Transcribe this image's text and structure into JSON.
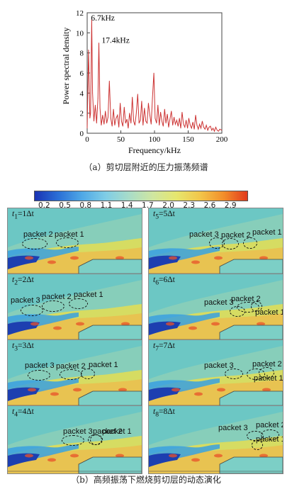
{
  "figure": {
    "caption_a": "（a）剪切层附近的压力振荡频谱",
    "caption_b": "（b）高频振荡下燃烧剪切层的动态演化"
  },
  "chart_data": {
    "type": "line",
    "xlabel": "Frequency/kHz",
    "ylabel": "Power spectral density",
    "xlim": [
      0,
      200
    ],
    "ylim": [
      0,
      12
    ],
    "xticks": [
      "0",
      "50",
      "100",
      "150",
      "200"
    ],
    "yticks": [
      "0",
      "2",
      "4",
      "6",
      "8",
      "10",
      "12"
    ],
    "annotations": [
      {
        "text": "6.7kHz",
        "x": 6.7,
        "y": 11.3
      },
      {
        "text": "17.4kHz",
        "x": 17.4,
        "y": 9.0
      }
    ],
    "line_color": "#cc3333",
    "series": [
      {
        "x": [
          0,
          2,
          4,
          5,
          6.7,
          8,
          10,
          12,
          14,
          16,
          17.4,
          19,
          21,
          23,
          25,
          27,
          29,
          31,
          33,
          35,
          37,
          39,
          41,
          43,
          45,
          47,
          49,
          51,
          53,
          55,
          57,
          59,
          61,
          63,
          65,
          67,
          69,
          71,
          73,
          75,
          77,
          79,
          81,
          83,
          85,
          87,
          89,
          91,
          93,
          95,
          97,
          99,
          101,
          103,
          105,
          107,
          109,
          111,
          113,
          115,
          117,
          119,
          121,
          123,
          125,
          127,
          129,
          131,
          133,
          135,
          137,
          139,
          141,
          143,
          145,
          147,
          149,
          151,
          153,
          155,
          157,
          159,
          161,
          163,
          165,
          167,
          169,
          171,
          173,
          175,
          177,
          179,
          181,
          183,
          185,
          187,
          189,
          191,
          193,
          195,
          197,
          200
        ],
        "y": [
          0.5,
          8.3,
          1.5,
          2.0,
          11.3,
          4.0,
          1.2,
          2.8,
          1.0,
          3.5,
          9.0,
          2.5,
          0.8,
          1.8,
          0.9,
          2.2,
          1.0,
          1.6,
          5.2,
          1.5,
          0.7,
          2.4,
          0.8,
          1.5,
          1.8,
          0.6,
          3.0,
          1.2,
          0.7,
          2.6,
          1.0,
          1.4,
          0.5,
          2.0,
          1.0,
          3.6,
          1.2,
          0.8,
          2.0,
          3.9,
          1.0,
          1.3,
          3.2,
          0.8,
          2.5,
          1.2,
          1.0,
          3.0,
          1.8,
          0.9,
          3.5,
          6.0,
          1.5,
          1.0,
          2.8,
          0.8,
          2.1,
          1.2,
          0.7,
          2.4,
          1.0,
          1.9,
          0.6,
          1.4,
          2.2,
          0.8,
          1.6,
          0.9,
          1.3,
          0.7,
          1.5,
          0.5,
          2.1,
          0.9,
          0.6,
          1.3,
          0.5,
          1.5,
          0.8,
          0.5,
          1.1,
          0.4,
          1.8,
          0.8,
          0.4,
          0.9,
          0.5,
          1.2,
          0.6,
          0.4,
          0.8,
          0.3,
          0.6,
          0.7,
          0.3,
          0.5,
          0.2,
          0.6,
          0.3,
          0.2,
          0.4,
          0.3
        ]
      }
    ]
  },
  "colorbar": {
    "ticks": [
      "0.2",
      "0.5",
      "0.8",
      "1.1",
      "1.4",
      "1.7",
      "2.0",
      "2.3",
      "2.6",
      "2.9"
    ],
    "colors": [
      "#1a33b3",
      "#2a6fd6",
      "#4fa8e6",
      "#7fcde6",
      "#a8dcc8",
      "#cfe6a0",
      "#e6e66e",
      "#f2c64a",
      "#f28e2b",
      "#e23a1c"
    ]
  },
  "panels": [
    {
      "t": "t",
      "sub": "1",
      "eq": "=1Δt",
      "packets": [
        "packet 2",
        "packet 1"
      ]
    },
    {
      "t": "t",
      "sub": "5",
      "eq": "=5Δt",
      "packets": [
        "packet 3",
        "packet 2",
        "packet 1"
      ]
    },
    {
      "t": "t",
      "sub": "2",
      "eq": "=2Δt",
      "packets": [
        "packet 3",
        "packet 2",
        "packet 1"
      ]
    },
    {
      "t": "t",
      "sub": "6",
      "eq": "=6Δt",
      "packets": [
        "packet 3",
        "packet 2",
        "packet 1"
      ]
    },
    {
      "t": "t",
      "sub": "3",
      "eq": "=3Δt",
      "packets": [
        "packet 3",
        "packet 2",
        "packet 1"
      ]
    },
    {
      "t": "t",
      "sub": "7",
      "eq": "=7Δt",
      "packets": [
        "packet 3",
        "packet 2",
        "packet 1"
      ]
    },
    {
      "t": "t",
      "sub": "4",
      "eq": "=4Δt",
      "packets": [
        "packet 3",
        "packet 2",
        "packet 1"
      ]
    },
    {
      "t": "t",
      "sub": "8",
      "eq": "=8Δt",
      "packets": [
        "packet 3",
        "packet 2",
        "packet 1"
      ]
    }
  ]
}
